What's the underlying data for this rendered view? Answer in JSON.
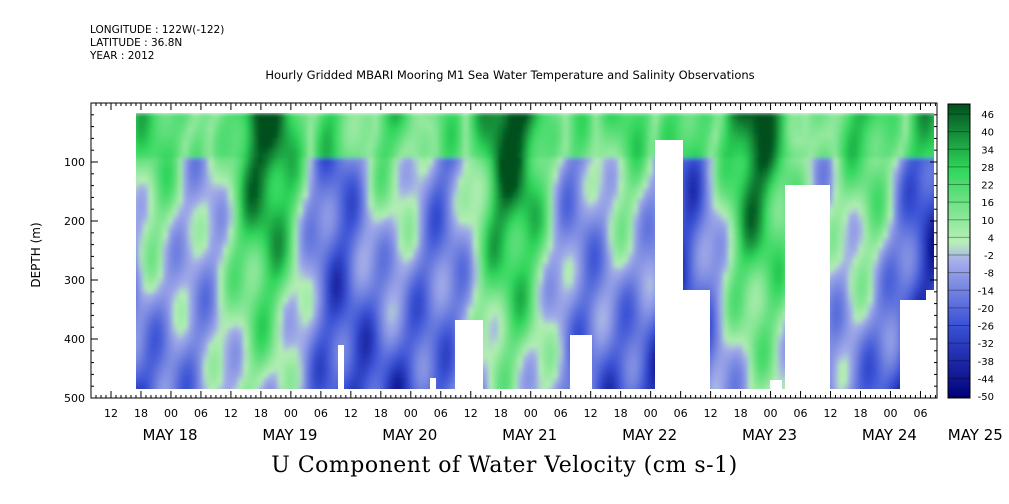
{
  "header": {
    "longitude": "LONGITUDE : 122W(-122)",
    "latitude": "LATITUDE : 36.8N",
    "year": "YEAR : 2012",
    "title": "Hourly Gridded MBARI Mooring M1 Sea Water Temperature and Salinity Observations"
  },
  "chart_data": {
    "type": "heatmap",
    "title": "U Component of Water Velocity (cm s-1)",
    "ylabel": "DEPTH (m)",
    "xlabel": "",
    "y_ticks": [
      100,
      200,
      300,
      400,
      500
    ],
    "y_range": [
      500,
      0
    ],
    "x_tick_hours": [
      "12",
      "18",
      "00",
      "06",
      "12",
      "18",
      "00",
      "06",
      "12",
      "18",
      "00",
      "06",
      "12",
      "18",
      "00",
      "06",
      "12",
      "18",
      "00",
      "06",
      "12",
      "18",
      "00",
      "06",
      "12",
      "18",
      "00",
      "06"
    ],
    "x_date_labels": [
      "MAY 18",
      "MAY 19",
      "MAY 20",
      "MAY 21",
      "MAY 22",
      "MAY 23",
      "MAY 24",
      "MAY 25"
    ],
    "colorbar_levels": [
      "46",
      "40",
      "34",
      "28",
      "22",
      "16",
      "10",
      "4",
      "-2",
      "-8",
      "-14",
      "-20",
      "-26",
      "-32",
      "-38",
      "-44",
      "-50"
    ],
    "colors": {
      "neg_dark": "#00007a",
      "neg_mid": "#3a52d6",
      "neg_light": "#a3ace8",
      "pos_light": "#b4eeb4",
      "pos_mid": "#2ed65a",
      "pos_dark": "#00501e"
    }
  }
}
